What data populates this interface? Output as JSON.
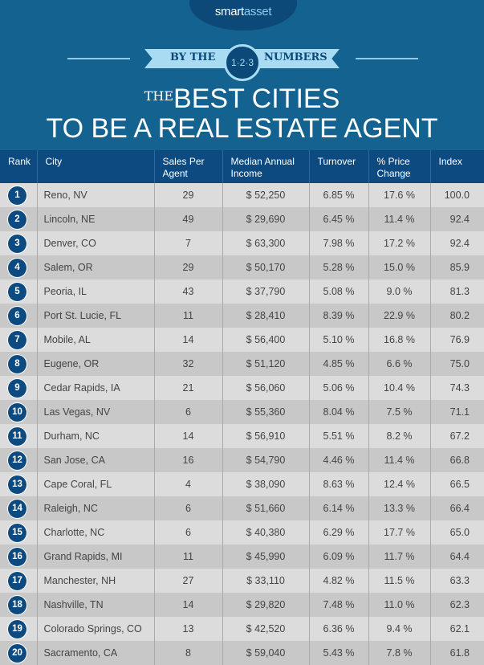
{
  "brand": {
    "smart": "smart",
    "asset": "asset"
  },
  "banner": {
    "left": "BY THE",
    "badge": "1·2·3",
    "right": "NUMBERS"
  },
  "title": {
    "prefix": "THE",
    "line1": "BEST CITIES",
    "line2": "TO BE A REAL ESTATE AGENT"
  },
  "colors": {
    "header_bg": "#14628f",
    "table_header": "#0d4a80",
    "row_light": "#dcdcdc",
    "row_dark": "#c8c8c8",
    "ribbon": "#a9dcf3"
  },
  "table": {
    "headers": [
      "Rank",
      "City",
      "Sales Per Agent",
      "Median Annual Income",
      "Turnover",
      "% Price Change",
      "Index"
    ],
    "rows": [
      [
        "1",
        "Reno, NV",
        "29",
        "$ 52,250",
        "6.85 %",
        "17.6 %",
        "100.0"
      ],
      [
        "2",
        "Lincoln, NE",
        "49",
        "$ 29,690",
        "6.45 %",
        "11.4 %",
        "92.4"
      ],
      [
        "3",
        "Denver, CO",
        "7",
        "$ 63,300",
        "7.98 %",
        "17.2 %",
        "92.4"
      ],
      [
        "4",
        "Salem, OR",
        "29",
        "$ 50,170",
        "5.28 %",
        "15.0 %",
        "85.9"
      ],
      [
        "5",
        "Peoria, IL",
        "43",
        "$ 37,790",
        "5.08 %",
        "9.0 %",
        "81.3"
      ],
      [
        "6",
        "Port St. Lucie, FL",
        "11",
        "$ 28,410",
        "8.39 %",
        "22.9 %",
        "80.2"
      ],
      [
        "7",
        "Mobile, AL",
        "14",
        "$ 56,400",
        "5.10 %",
        "16.8 %",
        "76.9"
      ],
      [
        "8",
        "Eugene, OR",
        "32",
        "$ 51,120",
        "4.85 %",
        "6.6 %",
        "75.0"
      ],
      [
        "9",
        "Cedar Rapids, IA",
        "21",
        "$ 56,060",
        "5.06 %",
        "10.4 %",
        "74.3"
      ],
      [
        "10",
        "Las Vegas, NV",
        "6",
        "$ 55,360",
        "8.04 %",
        "7.5 %",
        "71.1"
      ],
      [
        "11",
        "Durham, NC",
        "14",
        "$ 56,910",
        "5.51 %",
        "8.2 %",
        "67.2"
      ],
      [
        "12",
        "San Jose, CA",
        "16",
        "$ 54,790",
        "4.46 %",
        "11.4 %",
        "66.8"
      ],
      [
        "13",
        "Cape Coral, FL",
        "4",
        "$ 38,090",
        "8.63 %",
        "12.4 %",
        "66.5"
      ],
      [
        "14",
        "Raleigh, NC",
        "6",
        "$ 51,660",
        "6.14 %",
        "13.3 %",
        "66.4"
      ],
      [
        "15",
        "Charlotte, NC",
        "6",
        "$ 40,380",
        "6.29 %",
        "17.7 %",
        "65.0"
      ],
      [
        "16",
        "Grand Rapids, MI",
        "11",
        "$ 45,990",
        "6.09 %",
        "11.7 %",
        "64.4"
      ],
      [
        "17",
        "Manchester, NH",
        "27",
        "$ 33,110",
        "4.82 %",
        "11.5 %",
        "63.3"
      ],
      [
        "18",
        "Nashville, TN",
        "14",
        "$ 29,820",
        "7.48 %",
        "11.0 %",
        "62.3"
      ],
      [
        "19",
        "Colorado Springs, CO",
        "13",
        "$ 42,520",
        "6.36 %",
        "9.4 %",
        "62.1"
      ],
      [
        "20",
        "Sacramento, CA",
        "8",
        "$ 59,040",
        "5.43 %",
        "7.8 %",
        "61.8"
      ]
    ]
  }
}
